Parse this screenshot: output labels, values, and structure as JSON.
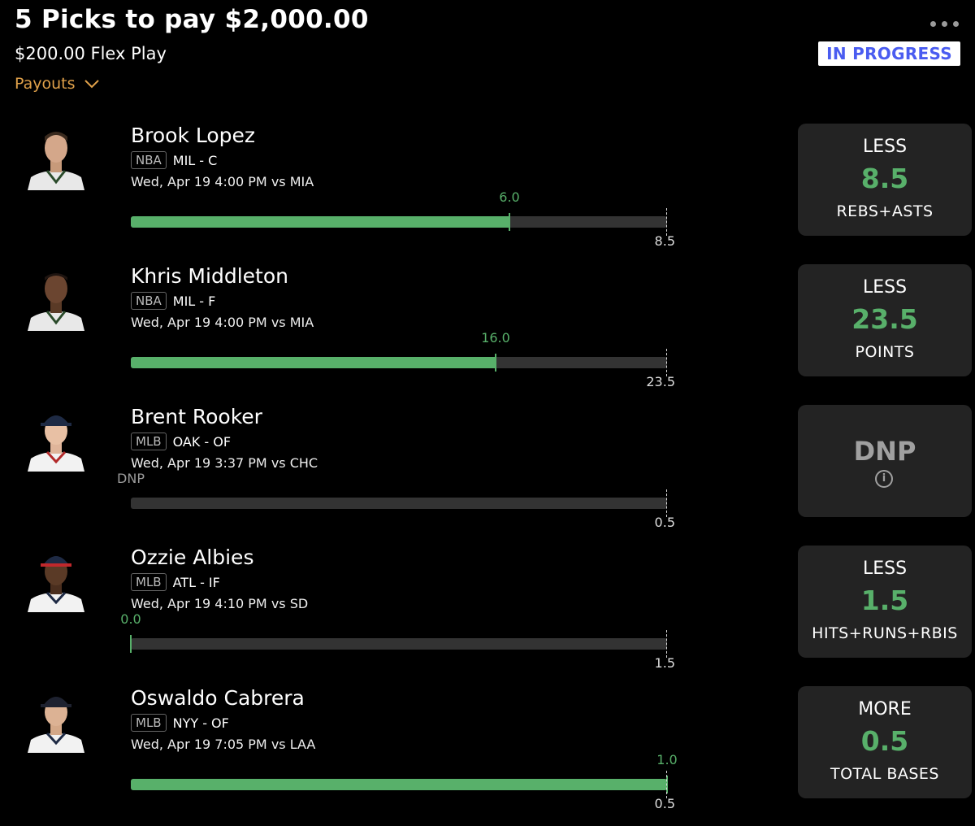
{
  "header": {
    "title": "5 Picks to pay $2,000.00",
    "subtitle": "$200.00 Flex Play",
    "payouts_label": "Payouts",
    "status": "IN PROGRESS"
  },
  "colors": {
    "accent_green": "#58b06a",
    "payouts_orange": "#e0a14a",
    "status_blue": "#4a5cf0"
  },
  "picks": [
    {
      "name": "Brook Lopez",
      "league": "NBA",
      "team_pos": "MIL - C",
      "game": "Wed, Apr 19 4:00 PM  vs MIA",
      "current": "6.0",
      "line": "8.5",
      "progress": 0.706,
      "direction": "LESS",
      "value": "8.5",
      "stat": "REBS+ASTS"
    },
    {
      "name": "Khris Middleton",
      "league": "NBA",
      "team_pos": "MIL - F",
      "game": "Wed, Apr 19 4:00 PM  vs MIA",
      "current": "16.0",
      "line": "23.5",
      "progress": 0.681,
      "direction": "LESS",
      "value": "23.5",
      "stat": "POINTS"
    },
    {
      "name": "Brent Rooker",
      "league": "MLB",
      "team_pos": "OAK - OF",
      "game": "Wed, Apr 19 3:37 PM  vs CHC",
      "current": "DNP",
      "line": "0.5",
      "progress": 0,
      "direction": "DNP",
      "value": "",
      "stat": ""
    },
    {
      "name": "Ozzie Albies",
      "league": "MLB",
      "team_pos": "ATL - IF",
      "game": "Wed, Apr 19 4:10 PM  vs SD",
      "current": "0.0",
      "line": "1.5",
      "progress": 0,
      "direction": "LESS",
      "value": "1.5",
      "stat": "HITS+RUNS+RBIS"
    },
    {
      "name": "Oswaldo Cabrera",
      "league": "MLB",
      "team_pos": "NYY - OF",
      "game": "Wed, Apr 19 7:05 PM  vs LAA",
      "current": "1.0",
      "line": "0.5",
      "progress": 1.0,
      "direction": "MORE",
      "value": "0.5",
      "stat": "TOTAL BASES"
    }
  ]
}
